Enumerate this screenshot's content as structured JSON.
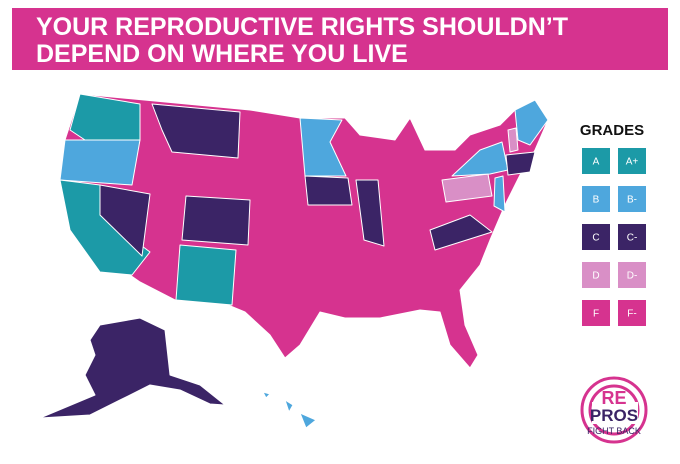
{
  "header": {
    "title_lines": [
      "YOUR REPRODUCTIVE RIGHTS SHOULDN’T",
      "DEPEND ON WHERE YOU LIVE"
    ]
  },
  "legend": {
    "title": "GRADES",
    "rows": [
      {
        "color": "#1c9aa7",
        "labels": [
          "A",
          "A+"
        ]
      },
      {
        "color": "#4ea7dd",
        "labels": [
          "B",
          "B-"
        ]
      },
      {
        "color": "#3b2466",
        "labels": [
          "C",
          "C-"
        ]
      },
      {
        "color": "#d98fc6",
        "labels": [
          "D",
          "D-"
        ]
      },
      {
        "color": "#d6338f",
        "labels": [
          "F",
          "F-"
        ]
      }
    ]
  },
  "logo": {
    "top": "RE",
    "middle": "PROS",
    "bottom": "FIGHT BACK"
  }
}
